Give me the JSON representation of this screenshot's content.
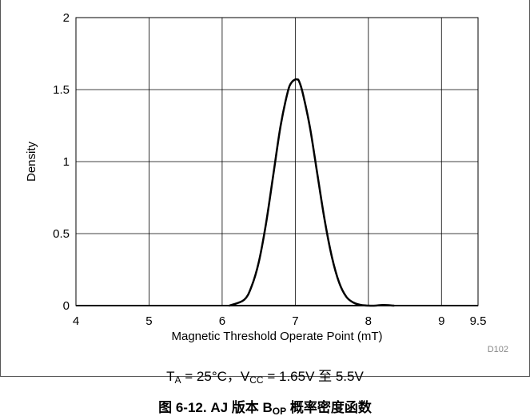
{
  "chart_data": {
    "type": "line",
    "xlabel": "Magnetic Threshold Operate Point (mT)",
    "ylabel": "Density",
    "xlim": [
      4,
      9.5
    ],
    "ylim": [
      0,
      2
    ],
    "xticks": [
      4,
      5,
      6,
      7,
      8,
      9,
      9.5
    ],
    "yticks": [
      0,
      0.5,
      1,
      1.5,
      2
    ],
    "grid": true,
    "line_color": "#000000",
    "series": [
      {
        "x": [
          6.1,
          6.3,
          6.4,
          6.5,
          6.6,
          6.7,
          6.8,
          6.9,
          6.95,
          7.0,
          7.03,
          7.05,
          7.1,
          7.2,
          7.3,
          7.4,
          7.5,
          7.6,
          7.7,
          7.8,
          7.9,
          8.0,
          8.1,
          8.2,
          8.35
        ],
        "y": [
          0.0,
          0.04,
          0.13,
          0.3,
          0.57,
          0.91,
          1.25,
          1.49,
          1.55,
          1.57,
          1.57,
          1.56,
          1.48,
          1.24,
          0.92,
          0.6,
          0.34,
          0.16,
          0.06,
          0.02,
          0.004,
          0.0,
          0.0,
          0.004,
          0.0
        ]
      }
    ],
    "code": "D102"
  },
  "conditions": {
    "ta_symbol": "T",
    "ta_sub": "A",
    "ta_value": " = 25°C，",
    "vcc_symbol": "V",
    "vcc_sub": "CC",
    "vcc_value": " = 1.65V 至 5.5V"
  },
  "caption": {
    "prefix": "图 6-12. AJ 版本 B",
    "sub": "OP",
    "suffix": " 概率密度函数"
  }
}
